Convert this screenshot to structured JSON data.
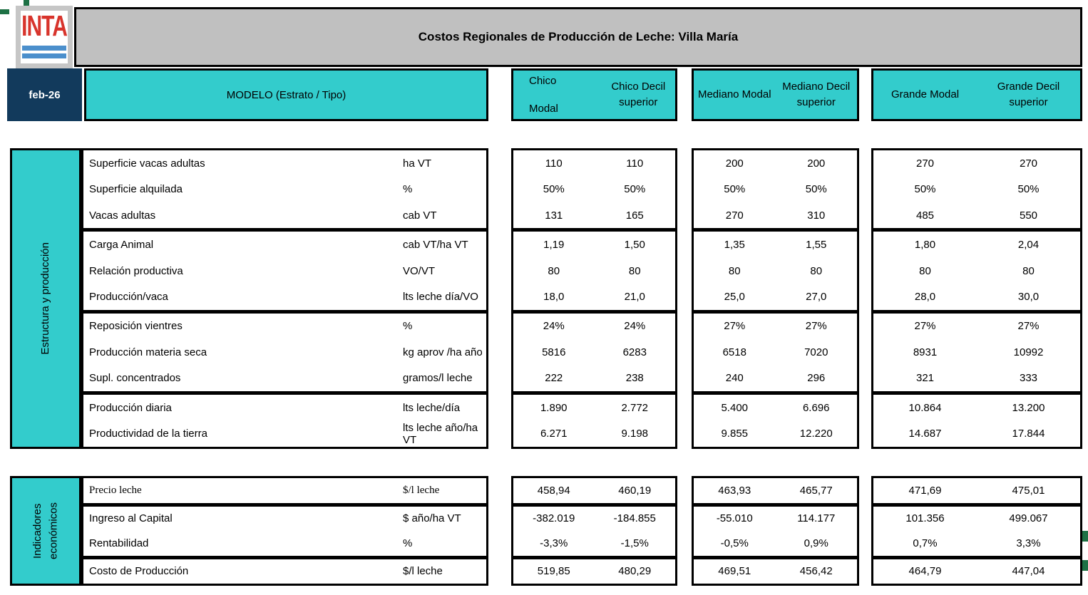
{
  "header": {
    "logo_text": "INTA",
    "title": "Costos Regionales de Producción de Leche: Villa María"
  },
  "controls": {
    "period": "feb-26",
    "modelo_label": "MODELO (Estrato / Tipo)"
  },
  "column_groups": [
    {
      "name": "Chico",
      "columns": [
        "Chico Modal",
        "Chico Decil superior"
      ]
    },
    {
      "name": "Mediano",
      "columns": [
        "Mediano Modal",
        "Mediano Decil superior"
      ]
    },
    {
      "name": "Grande",
      "columns": [
        "Grande Modal",
        "Grande Decil superior"
      ]
    }
  ],
  "sections": [
    {
      "label": "Estructura y producción",
      "row_groups": [
        {
          "rows": [
            {
              "label": "Superficie vacas adultas",
              "unit": "ha VT",
              "values": [
                "110",
                "110",
                "200",
                "200",
                "270",
                "270"
              ]
            },
            {
              "label": "Superficie alquilada",
              "unit": "%",
              "values": [
                "50%",
                "50%",
                "50%",
                "50%",
                "50%",
                "50%"
              ]
            },
            {
              "label": "Vacas adultas",
              "unit": "cab VT",
              "values": [
                "131",
                "165",
                "270",
                "310",
                "485",
                "550"
              ]
            }
          ]
        },
        {
          "rows": [
            {
              "label": "Carga Animal",
              "unit": "cab VT/ha VT",
              "values": [
                "1,19",
                "1,50",
                "1,35",
                "1,55",
                "1,80",
                "2,04"
              ]
            },
            {
              "label": "Relación productiva",
              "unit": "VO/VT",
              "values": [
                "80",
                "80",
                "80",
                "80",
                "80",
                "80"
              ]
            },
            {
              "label": "Producción/vaca",
              "unit": "lts leche día/VO",
              "values": [
                "18,0",
                "21,0",
                "25,0",
                "27,0",
                "28,0",
                "30,0"
              ]
            }
          ]
        },
        {
          "rows": [
            {
              "label": "Reposición vientres",
              "unit": "%",
              "values": [
                "24%",
                "24%",
                "27%",
                "27%",
                "27%",
                "27%"
              ]
            },
            {
              "label": "Producción materia seca",
              "unit": "kg aprov /ha año",
              "values": [
                "5816",
                "6283",
                "6518",
                "7020",
                "8931",
                "10992"
              ]
            },
            {
              "label": "Supl. concentrados",
              "unit": "gramos/l leche",
              "values": [
                "222",
                "238",
                "240",
                "296",
                "321",
                "333"
              ]
            }
          ]
        },
        {
          "rows": [
            {
              "label": "Producción diaria",
              "unit": "lts leche/día",
              "values": [
                "1.890",
                "2.772",
                "5.400",
                "6.696",
                "10.864",
                "13.200"
              ]
            },
            {
              "label": "Productividad de la tierra",
              "unit": "lts leche año/ha VT",
              "values": [
                "6.271",
                "9.198",
                "9.855",
                "12.220",
                "14.687",
                "17.844"
              ]
            }
          ]
        }
      ]
    },
    {
      "label": "Indicadores\neconómicos",
      "row_groups": [
        {
          "rows": [
            {
              "label": "Precio leche",
              "unit": "$/l leche",
              "values": [
                "458,94",
                "460,19",
                "463,93",
                "465,77",
                "471,69",
                "475,01"
              ]
            }
          ]
        },
        {
          "rows": [
            {
              "label": "Ingreso al Capital",
              "unit": "$ año/ha VT",
              "values": [
                "-382.019",
                "-184.855",
                "-55.010",
                "114.177",
                "101.356",
                "499.067"
              ]
            },
            {
              "label": "Rentabilidad",
              "unit": "%",
              "values": [
                "-3,3%",
                "-1,5%",
                "-0,5%",
                "0,9%",
                "0,7%",
                "3,3%"
              ]
            }
          ]
        },
        {
          "rows": [
            {
              "label": "Costo de Producción",
              "unit": "$/l leche",
              "values": [
                "519,85",
                "480,29",
                "469,51",
                "456,42",
                "464,79",
                "447,04"
              ]
            }
          ]
        }
      ]
    }
  ],
  "colors": {
    "teal": "#33CCCC",
    "navy": "#123A5C",
    "title_gray": "#C0C0C0",
    "logo_red": "#D8342C",
    "logo_blue": "#4B8FCC",
    "artifact_green": "#1E7145"
  }
}
